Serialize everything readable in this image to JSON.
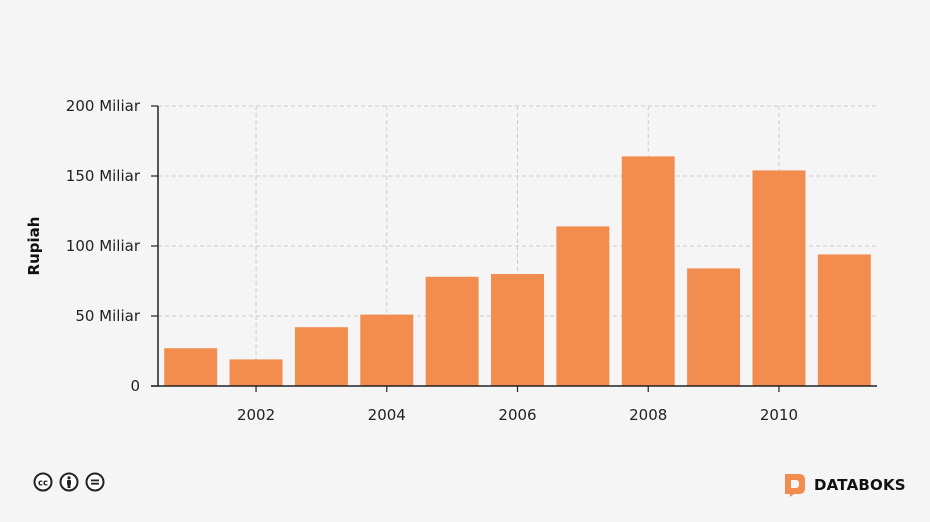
{
  "chart_data": {
    "type": "bar",
    "x": [
      2001,
      2002,
      2003,
      2004,
      2005,
      2006,
      2007,
      2008,
      2009,
      2010,
      2011
    ],
    "values": [
      27,
      19,
      42,
      51,
      78,
      80,
      114,
      164,
      84,
      154,
      94
    ],
    "ylabel": "Rupiah",
    "xlabel": "",
    "ylim": [
      0,
      200
    ],
    "yticks": [
      0,
      50,
      100,
      150,
      200
    ],
    "ytick_labels": [
      "0",
      "50 Miliar",
      "100 Miliar",
      "150 Miliar",
      "200 Miliar"
    ],
    "xticks": [
      2002,
      2004,
      2006,
      2008,
      2010
    ],
    "xtick_labels": [
      "2002",
      "2004",
      "2006",
      "2008",
      "2010"
    ],
    "grid": true,
    "colors": {
      "bar": "#f28c4f",
      "grid": "#cccccc",
      "axis": "#222222"
    }
  },
  "footer": {
    "brand": "DATABOKS",
    "brand_color": "#f28c4f",
    "icons": [
      "cc-icon",
      "by-icon",
      "nd-icon"
    ]
  }
}
